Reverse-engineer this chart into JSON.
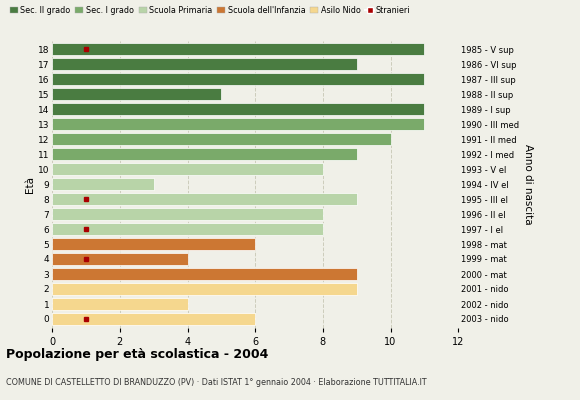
{
  "ages": [
    18,
    17,
    16,
    15,
    14,
    13,
    12,
    11,
    10,
    9,
    8,
    7,
    6,
    5,
    4,
    3,
    2,
    1,
    0
  ],
  "bar_values": [
    11,
    9,
    11,
    5,
    11,
    11,
    10,
    9,
    8,
    3,
    9,
    8,
    8,
    6,
    4,
    9,
    9,
    4,
    6
  ],
  "right_labels": [
    "1985 - V sup",
    "1986 - VI sup",
    "1987 - III sup",
    "1988 - II sup",
    "1989 - I sup",
    "1990 - III med",
    "1991 - II med",
    "1992 - I med",
    "1993 - V el",
    "1994 - IV el",
    "1995 - III el",
    "1996 - II el",
    "1997 - I el",
    "1998 - mat",
    "1999 - mat",
    "2000 - mat",
    "2001 - nido",
    "2002 - nido",
    "2003 - nido"
  ],
  "bar_colors": [
    "#4a7c41",
    "#4a7c41",
    "#4a7c41",
    "#4a7c41",
    "#4a7c41",
    "#7aaa6a",
    "#7aaa6a",
    "#7aaa6a",
    "#b8d4a8",
    "#b8d4a8",
    "#b8d4a8",
    "#b8d4a8",
    "#b8d4a8",
    "#cc7733",
    "#cc7733",
    "#cc7733",
    "#f5d78e",
    "#f5d78e",
    "#f5d78e"
  ],
  "stranieri_x": [
    1,
    0,
    0,
    0,
    0,
    0,
    0,
    0,
    0,
    0,
    1,
    0,
    1,
    0,
    1,
    0,
    0,
    0,
    1
  ],
  "legend_labels": [
    "Sec. II grado",
    "Sec. I grado",
    "Scuola Primaria",
    "Scuola dell'Infanzia",
    "Asilo Nido",
    "Stranieri"
  ],
  "legend_colors": [
    "#4a7c41",
    "#7aaa6a",
    "#b8d4a8",
    "#cc7733",
    "#f5d78e",
    "#aa0000"
  ],
  "title": "Popolazione per età scolastica - 2004",
  "subtitle": "COMUNE DI CASTELLETTO DI BRANDUZZO (PV) · Dati ISTAT 1° gennaio 2004 · Elaborazione TUTTITALIA.IT",
  "ylabel_left": "Età",
  "ylabel_right": "Anno di nascita",
  "xlim": [
    0,
    12
  ],
  "background_color": "#f0f0e8",
  "grid_color": "#ccccbb"
}
